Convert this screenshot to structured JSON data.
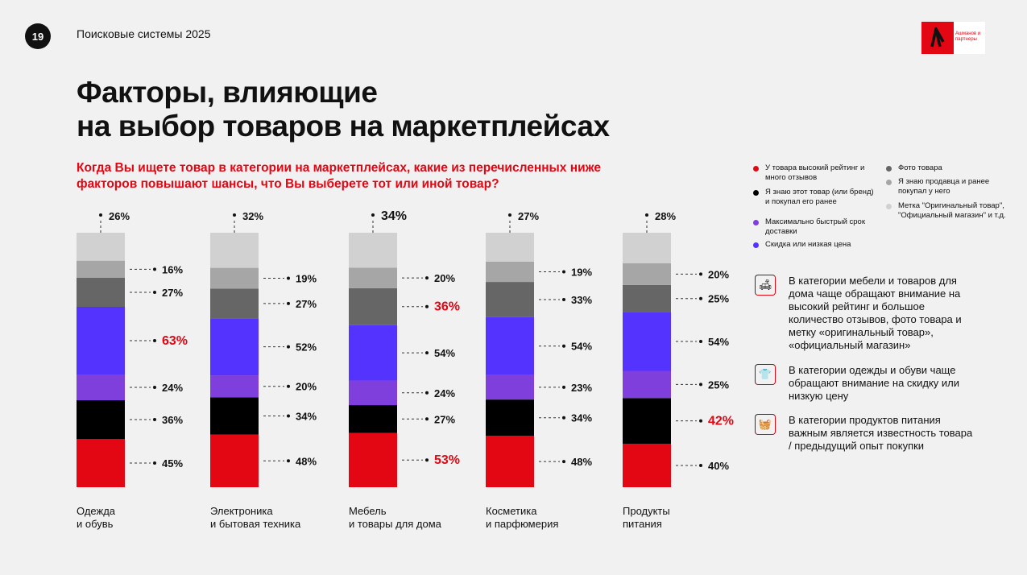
{
  "page_number": "19",
  "subtitle": "Поисковые системы 2025",
  "logo_text": "Ашманов и партнеры",
  "title_line1": "Факторы, влияющие",
  "title_line2": "на выбор товаров на маркетплейсах",
  "question_line1": "Когда Вы ищете товар в категории на маркетплейсах, какие из перечисленных ниже",
  "question_line2": "факторов повышают шансы, что Вы выберете тот или иной товар?",
  "chart_data": {
    "type": "bar",
    "stacked": true,
    "categories": [
      "Одежда\nи обувь",
      "Электроника\nи бытовая техника",
      "Мебель\nи товары для дома",
      "Косметика\nи парфюмерия",
      "Продукты\nпитания"
    ],
    "series": [
      {
        "name": "У товара высокий рейтинг и много отзывов",
        "color": "#e30613",
        "values": [
          45,
          48,
          53,
          48,
          40
        ]
      },
      {
        "name": "Я знаю этот товар (или бренд) и покупал его ранее",
        "color": "#000000",
        "values": [
          36,
          34,
          27,
          34,
          42
        ]
      },
      {
        "name": "Максимально быстрый срок доставки",
        "color": "#7e3fdc",
        "values": [
          24,
          20,
          24,
          23,
          25
        ]
      },
      {
        "name": "Скидка или низкая цена",
        "color": "#5533ff",
        "values": [
          63,
          52,
          54,
          54,
          54
        ]
      },
      {
        "name": "Фото товара",
        "color": "#666666",
        "values": [
          27,
          27,
          36,
          33,
          25
        ]
      },
      {
        "name": "Я знаю продавца и ранее покупал у него",
        "color": "#a6a6a6",
        "values": [
          16,
          19,
          20,
          19,
          20
        ]
      },
      {
        "name": "Метка \"Оригинальный товар\", \"Официальный магазин\" и т.д.",
        "color": "#d1d1d1",
        "values": [
          26,
          32,
          34,
          27,
          28
        ]
      }
    ],
    "highlighted": [
      [
        0,
        3
      ],
      [
        2,
        0
      ],
      [
        2,
        4
      ],
      [
        4,
        1
      ]
    ],
    "unit": "%"
  },
  "legend": [
    {
      "label": "У товара высокий рейтинг и много отзывов",
      "color": "#e30613"
    },
    {
      "label": "Я знаю этот товар (или бренд) и покупал его ранее",
      "color": "#000000"
    },
    {
      "label": "Максимально быстрый срок доставки",
      "color": "#7e3fdc"
    },
    {
      "label": "Скидка или низкая цена",
      "color": "#5533ff"
    },
    {
      "label": "Фото товара",
      "color": "#666666"
    },
    {
      "label": "Я знаю продавца и ранее покупал у него",
      "color": "#a6a6a6"
    },
    {
      "label": "Метка \"Оригинальный товар\", \"Официальный магазин\" и т.д.",
      "color": "#d1d1d1"
    }
  ],
  "notes": [
    {
      "icon": "sofa-icon",
      "text": "В категории мебели и товаров для дома чаще обращают внимание на высокий рейтинг и большое количество отзывов, фото товара и метку «оригинальный товар», «официальный магазин»"
    },
    {
      "icon": "tshirt-icon",
      "text": "В категории одежды и обуви чаще обращают внимание на скидку или низкую цену"
    },
    {
      "icon": "basket-icon",
      "text": "В категории продуктов питания важным является известность товара / предыдущий опыт покупки"
    }
  ]
}
